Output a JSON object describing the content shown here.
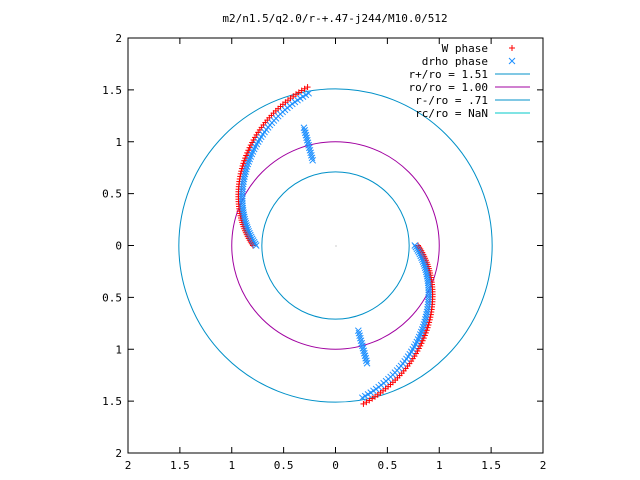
{
  "chart_data": {
    "type": "scatter",
    "title": "m2/n1.5/q2.0/r-+.47-j244/M10.0/512",
    "xlabel": "",
    "ylabel": "",
    "xlim": [
      -2,
      2
    ],
    "ylim": [
      -2,
      2
    ],
    "grid": false,
    "legend_position": "top-right",
    "x_tick_labels": [
      "2",
      "1.5",
      "1",
      "0.5",
      "0",
      "0.5",
      "1",
      "1.5",
      "2"
    ],
    "y_tick_labels": [
      "2",
      "1.5",
      "1",
      "0.5",
      "0",
      "0.5",
      "1",
      "1.5",
      "2"
    ],
    "legend": [
      {
        "label": "W phase",
        "marker": "plus",
        "color": "#ff0000"
      },
      {
        "label": "drho phase",
        "marker": "cross",
        "color": "#1e90ff"
      },
      {
        "label": "r+/ro = 1.51",
        "marker": "line",
        "color": "#0090c8"
      },
      {
        "label": "ro/ro = 1.00",
        "marker": "line",
        "color": "#a000a0"
      },
      {
        "label": "r-/ro = .71",
        "marker": "line",
        "color": "#0090c8"
      },
      {
        "label": "rc/ro = NaN",
        "marker": "line",
        "color": "#00c8c8"
      }
    ],
    "circles": [
      {
        "name": "r+/ro = 1.51",
        "radius": 1.51,
        "color": "#0090c8"
      },
      {
        "name": "ro/ro = 1.00",
        "radius": 1.0,
        "color": "#a000a0"
      },
      {
        "name": "r-/ro = .71",
        "radius": 0.71,
        "color": "#0090c8"
      }
    ],
    "spiral_arms": [
      {
        "r_start": 0.78,
        "r_end": 1.52,
        "angle_start_deg": 180,
        "angle_end_deg": 100,
        "jump_angle_deg": 105
      },
      {
        "r_start": 0.78,
        "r_end": 1.52,
        "angle_start_deg": 0,
        "angle_end_deg": -80,
        "jump_angle_deg": -75
      }
    ]
  }
}
